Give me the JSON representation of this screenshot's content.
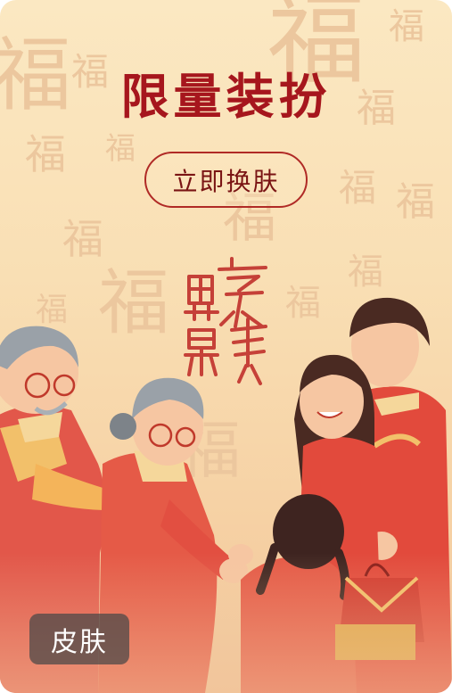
{
  "card": {
    "title": "限量装扮",
    "button_label": "立即换肤",
    "badge_label": "皮肤",
    "pattern_glyph": "福",
    "stamp_text": [
      "家",
      "和",
      "事",
      "興",
      "萬"
    ]
  },
  "colors": {
    "title": "#a6161d",
    "button_border": "#b02a26",
    "background_top": "#fbe8c2",
    "background_bottom": "#f0c49a",
    "badge_bg": "#464646",
    "stamp": "#c0302b"
  },
  "illustration": {
    "subject": "family-new-year-greeting"
  }
}
